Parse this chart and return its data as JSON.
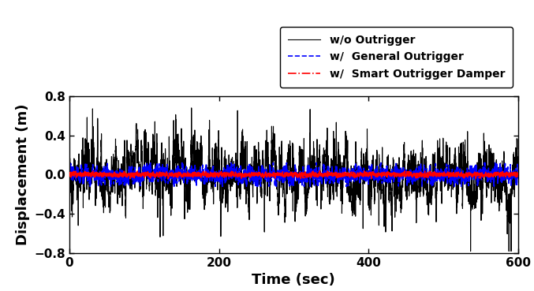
{
  "title": "",
  "xlabel": "Time (sec)",
  "ylabel": "Displacement (m)",
  "xlim": [
    0,
    600
  ],
  "ylim": [
    -0.8,
    0.8
  ],
  "yticks": [
    -0.8,
    -0.4,
    0,
    0.4,
    0.8
  ],
  "xticks": [
    0,
    200,
    400,
    600
  ],
  "legend": [
    {
      "label": "w/o Outrigger",
      "color": "#000000",
      "linestyle": "solid",
      "linewidth": 0.8
    },
    {
      "label": "w/  General Outrigger",
      "color": "#0000ff",
      "linestyle": "dashed",
      "linewidth": 1.2
    },
    {
      "label": "w/  Smart Outrigger Damper",
      "color": "#ff0000",
      "linestyle": "dashdot",
      "linewidth": 1.2
    }
  ],
  "seed": 42,
  "n_points": 6000,
  "t_max": 600,
  "wo_amplitude": 0.15,
  "wo_hf_amplitude": 0.06,
  "wo_spike_prob": 0.012,
  "wo_spike_amp_min": 0.25,
  "wo_spike_amp_max": 0.55,
  "general_amplitude": 0.045,
  "smart_amplitude": 0.012,
  "background_color": "#ffffff",
  "figsize": [
    6.77,
    3.69
  ],
  "dpi": 100
}
